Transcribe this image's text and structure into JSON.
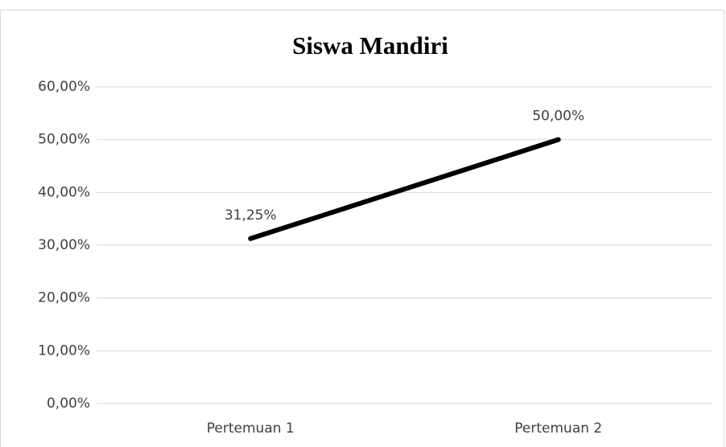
{
  "chart_data": {
    "type": "line",
    "title": "Siswa Mandiri",
    "categories": [
      "Pertemuan 1",
      "Pertemuan 2"
    ],
    "values": [
      31.25,
      50
    ],
    "value_labels": [
      "31,25%",
      "50,00%"
    ],
    "color": "#000000",
    "ylim": [
      0,
      60
    ],
    "yticks": [
      {
        "value": 0,
        "label": "0,00%"
      },
      {
        "value": 10,
        "label": "10,00%"
      },
      {
        "value": 20,
        "label": "20,00%"
      },
      {
        "value": 30,
        "label": "30,00%"
      },
      {
        "value": 40,
        "label": "40,00%"
      },
      {
        "value": 50,
        "label": "50,00%"
      },
      {
        "value": 60,
        "label": "60,00%"
      }
    ],
    "grid": true
  }
}
